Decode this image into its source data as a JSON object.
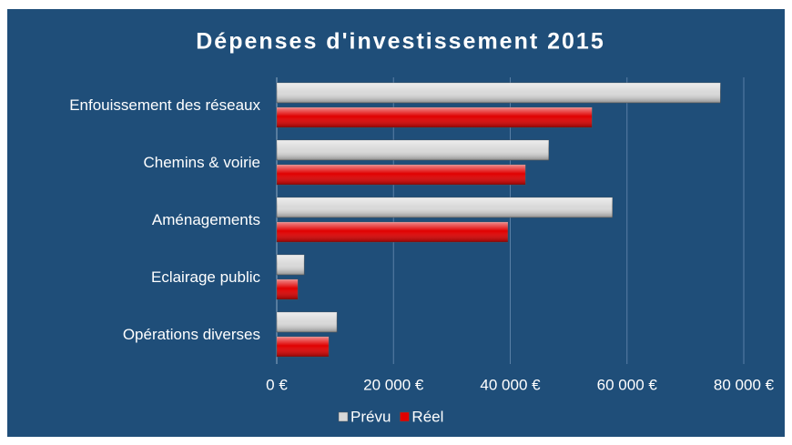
{
  "chart_data": {
    "type": "hbar",
    "title": "Dépenses d'investissement 2015",
    "categories": [
      "Enfouissement des réseaux",
      "Chemins & voirie",
      "Aménagements",
      "Eclairage public",
      "Opérations diverses"
    ],
    "series": [
      {
        "name": "Prévu",
        "color": "#d9d9d9",
        "values": [
          76000,
          46600,
          57500,
          4700,
          10300
        ]
      },
      {
        "name": "Réel",
        "color": "#e00000",
        "values": [
          54000,
          42600,
          39600,
          3600,
          8900
        ]
      }
    ],
    "xlim": [
      0,
      80000
    ],
    "xticks": [
      {
        "value": 0,
        "label": "0 €"
      },
      {
        "value": 20000,
        "label": "20 000 €"
      },
      {
        "value": 40000,
        "label": "40 000 €"
      },
      {
        "value": 60000,
        "label": "60 000 €"
      },
      {
        "value": 80000,
        "label": "80 000 €"
      }
    ],
    "grid": true,
    "legend": "bottom"
  }
}
